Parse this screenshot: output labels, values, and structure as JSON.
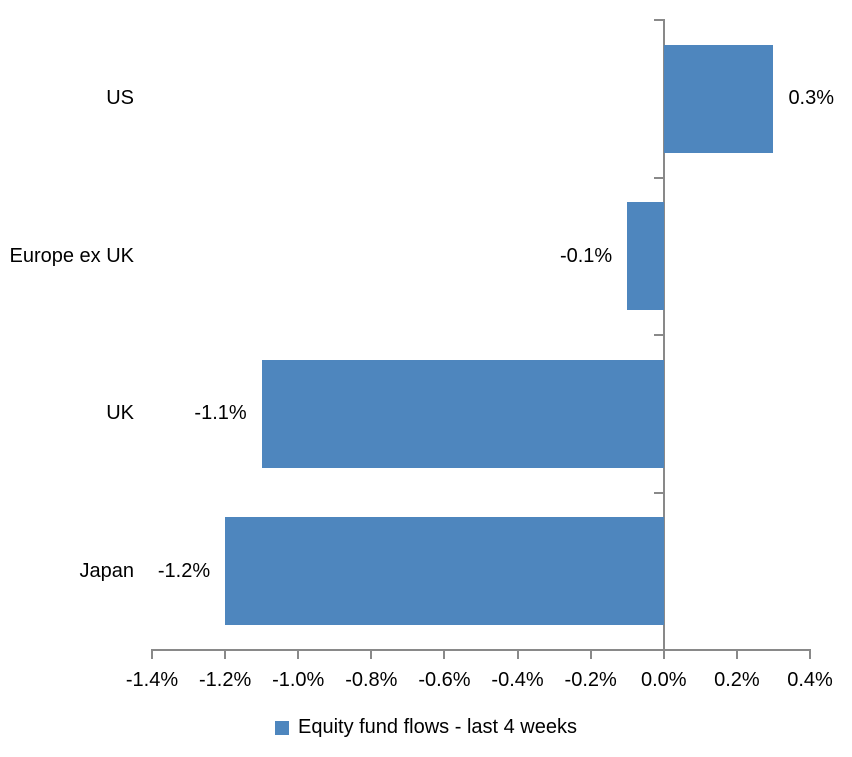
{
  "chart_data": {
    "type": "bar",
    "orientation": "horizontal",
    "title": "",
    "xlabel": "",
    "ylabel": "",
    "categories": [
      "US",
      "Europe ex UK",
      "UK",
      "Japan"
    ],
    "values": [
      0.3,
      -0.1,
      -1.1,
      -1.2
    ],
    "data_labels": [
      "0.3%",
      "-0.1%",
      "-1.1%",
      "-1.2%"
    ],
    "series_name": "Equity fund flows - last 4 weeks",
    "xlim": [
      -1.4,
      0.4
    ],
    "x_tick_step": 0.2,
    "x_tick_labels": [
      "-1.4%",
      "-1.2%",
      "-1.0%",
      "-0.8%",
      "-0.6%",
      "-0.4%",
      "-0.2%",
      "0.0%",
      "0.2%",
      "0.4%"
    ],
    "grid": false,
    "legend_position": "bottom"
  },
  "colors": {
    "bar": "#4E86BE",
    "axis": "#898989",
    "text": "#000000",
    "background": "#FFFFFF"
  }
}
